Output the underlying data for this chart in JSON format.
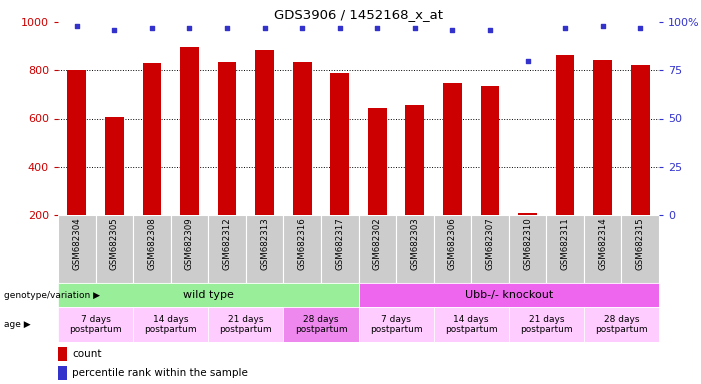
{
  "title": "GDS3906 / 1452168_x_at",
  "samples": [
    "GSM682304",
    "GSM682305",
    "GSM682308",
    "GSM682309",
    "GSM682312",
    "GSM682313",
    "GSM682316",
    "GSM682317",
    "GSM682302",
    "GSM682303",
    "GSM682306",
    "GSM682307",
    "GSM682310",
    "GSM682311",
    "GSM682314",
    "GSM682315"
  ],
  "counts": [
    800,
    608,
    830,
    895,
    833,
    882,
    833,
    790,
    644,
    654,
    748,
    736,
    210,
    862,
    842,
    820
  ],
  "percentile_ranks": [
    98,
    96,
    97,
    97,
    97,
    97,
    97,
    97,
    97,
    97,
    96,
    96,
    80,
    97,
    98,
    97
  ],
  "bar_color": "#cc0000",
  "dot_color": "#3333cc",
  "ylim_left": [
    200,
    1000
  ],
  "ylim_right": [
    0,
    100
  ],
  "yticks_left": [
    200,
    400,
    600,
    800,
    1000
  ],
  "yticks_right": [
    0,
    25,
    50,
    75,
    100
  ],
  "grid_dotted_values": [
    400,
    600,
    800
  ],
  "genotype_groups": [
    {
      "label": "wild type",
      "start": 0,
      "end": 8,
      "color": "#99ee99"
    },
    {
      "label": "Ubb-/- knockout",
      "start": 8,
      "end": 16,
      "color": "#ee66ee"
    }
  ],
  "age_groups": [
    {
      "label": "7 days\npostpartum",
      "start": 0,
      "end": 2,
      "color": "#ffccff"
    },
    {
      "label": "14 days\npostpartum",
      "start": 2,
      "end": 4,
      "color": "#ffccff"
    },
    {
      "label": "21 days\npostpartum",
      "start": 4,
      "end": 6,
      "color": "#ffccff"
    },
    {
      "label": "28 days\npostpartum",
      "start": 6,
      "end": 8,
      "color": "#ee88ee"
    },
    {
      "label": "7 days\npostpartum",
      "start": 8,
      "end": 10,
      "color": "#ffccff"
    },
    {
      "label": "14 days\npostpartum",
      "start": 10,
      "end": 12,
      "color": "#ffccff"
    },
    {
      "label": "21 days\npostpartum",
      "start": 12,
      "end": 14,
      "color": "#ffccff"
    },
    {
      "label": "28 days\npostpartum",
      "start": 14,
      "end": 16,
      "color": "#ffccff"
    }
  ],
  "bar_width": 0.5,
  "sample_bg_color": "#cccccc",
  "ylabel_left_color": "#cc0000",
  "ylabel_right_color": "#3333cc",
  "fig_width": 7.01,
  "fig_height": 3.84,
  "dpi": 100
}
